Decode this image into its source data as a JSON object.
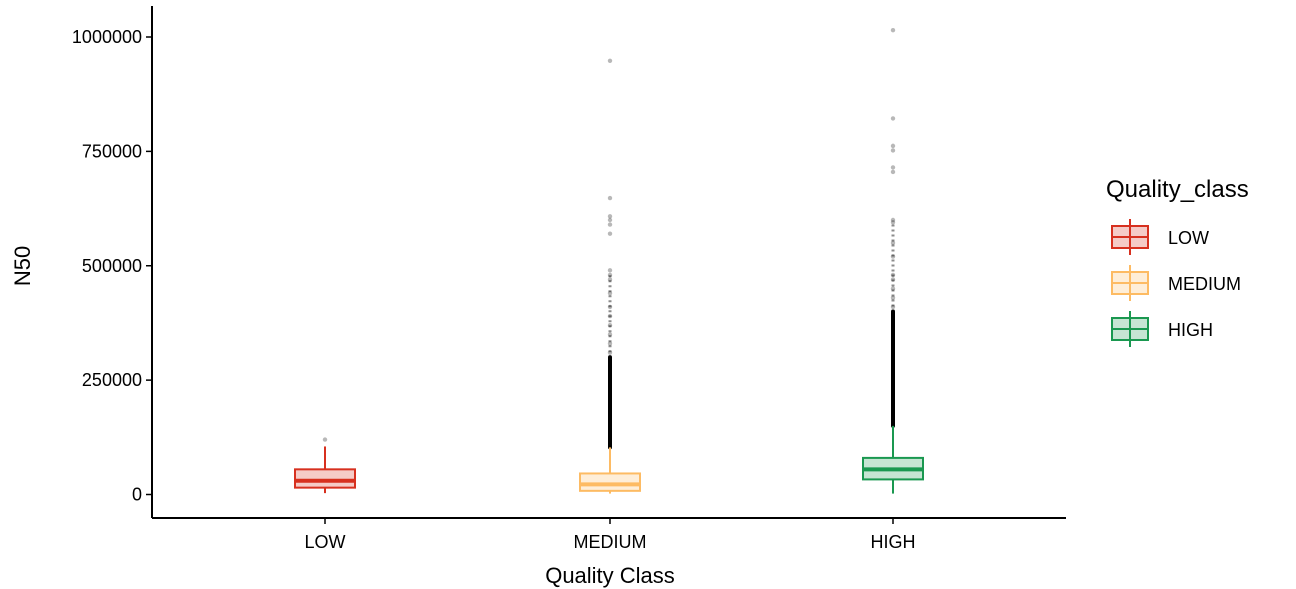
{
  "chart_data": {
    "type": "boxplot",
    "xlabel": "Quality Class",
    "ylabel": "N50",
    "categories": [
      "LOW",
      "MEDIUM",
      "HIGH"
    ],
    "yticks": [
      0,
      250000,
      500000,
      750000,
      1000000
    ],
    "yticklabels": [
      "0",
      "250000",
      "500000",
      "750000",
      "1000000"
    ],
    "ylim": [
      -25000,
      1066000
    ],
    "grid": false,
    "legend": {
      "title": "Quality_class",
      "placement": "right",
      "entries": [
        "LOW",
        "MEDIUM",
        "HIGH"
      ]
    },
    "colors": {
      "LOW": "#d7301f",
      "MEDIUM": "#fdbb63",
      "HIGH": "#1a9850"
    },
    "series": [
      {
        "name": "LOW",
        "min": 3000,
        "q1": 15000,
        "median": 30000,
        "q3": 55000,
        "max": 105000,
        "outliers": [
          120000
        ]
      },
      {
        "name": "MEDIUM",
        "min": 2000,
        "q1": 8000,
        "median": 22000,
        "q3": 46000,
        "max": 103000,
        "outlier_band": [
          103000,
          300000
        ],
        "outliers": [
          310000,
          330000,
          350000,
          370000,
          390000,
          410000,
          440000,
          470000,
          480000,
          490000,
          570000,
          590000,
          600000,
          608000,
          648000,
          948000
        ]
      },
      {
        "name": "HIGH",
        "min": 2000,
        "q1": 33000,
        "median": 55000,
        "q3": 80000,
        "max": 150000,
        "outlier_band": [
          150000,
          400000
        ],
        "outliers": [
          410000,
          430000,
          450000,
          470000,
          480000,
          520000,
          550000,
          595000,
          600000,
          705000,
          715000,
          752000,
          762000,
          822000,
          1015000
        ]
      }
    ]
  }
}
